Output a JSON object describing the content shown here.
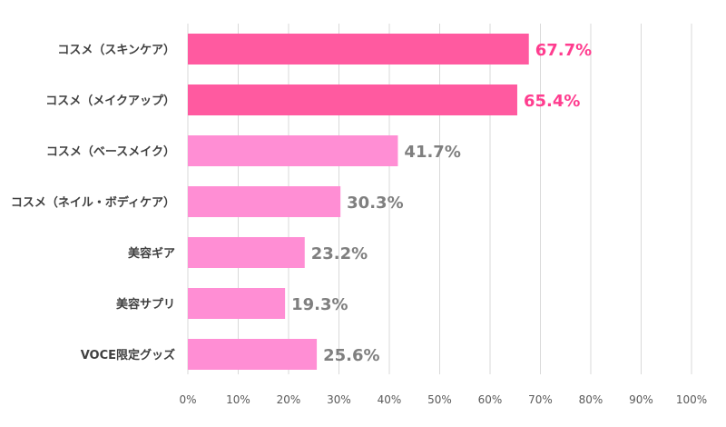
{
  "chart_data": {
    "type": "bar",
    "orientation": "horizontal",
    "categories": [
      "コスメ（スキンケア）",
      "コスメ（メイクアップ）",
      "コスメ（ベースメイク）",
      "コスメ（ネイル・ボディケア）",
      "美容ギア",
      "美容サプリ",
      "VOCE限定グッズ"
    ],
    "values": [
      67.7,
      65.4,
      41.7,
      30.3,
      23.2,
      19.3,
      25.6
    ],
    "value_labels": [
      "67.7%",
      "65.4%",
      "41.7%",
      "30.3%",
      "23.2%",
      "19.3%",
      "25.6%"
    ],
    "xlim": [
      0,
      100
    ],
    "xticks": [
      0,
      10,
      20,
      30,
      40,
      50,
      60,
      70,
      80,
      90,
      100
    ],
    "xtick_labels": [
      "0%",
      "10%",
      "20%",
      "30%",
      "40%",
      "50%",
      "60%",
      "70%",
      "80%",
      "90%",
      "100%"
    ],
    "grid": true,
    "title": "",
    "xlabel": "",
    "ylabel": "",
    "colors": {
      "highlight_bar": "#ff5aa0",
      "normal_bar": "#ff8ed4",
      "highlight_label": "#ff3d8f",
      "normal_label": "#7f7f7f",
      "category_text": "#404040",
      "tick_text": "#595959",
      "gridline": "#d9d9d9"
    },
    "highlighted": [
      true,
      true,
      false,
      false,
      false,
      false,
      false
    ]
  }
}
